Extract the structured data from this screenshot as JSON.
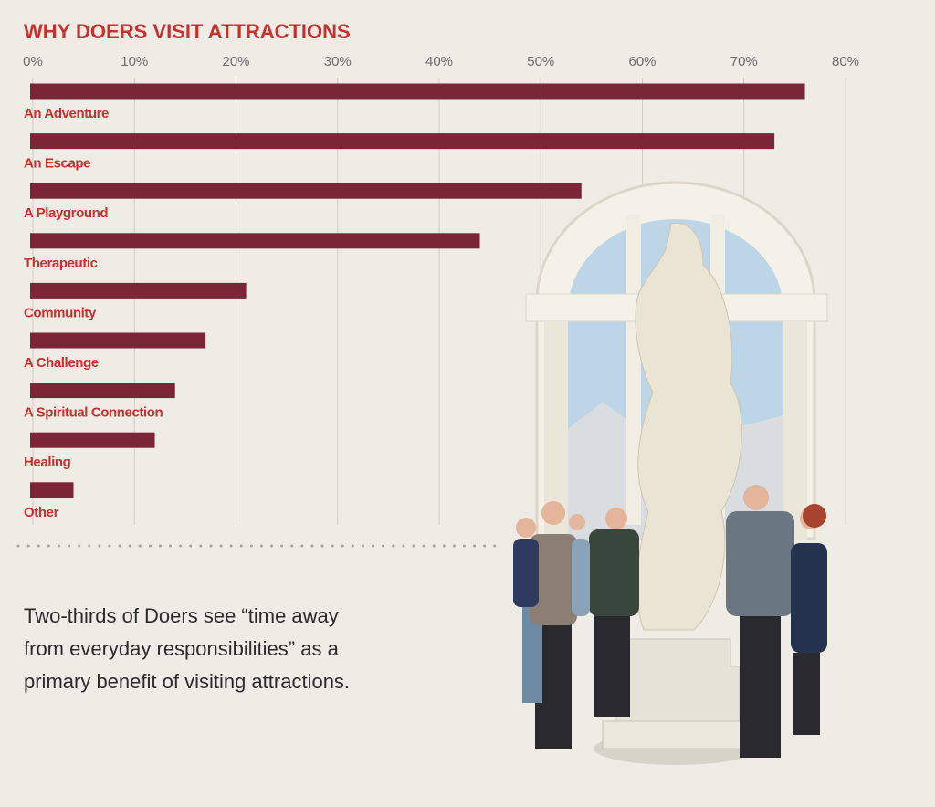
{
  "chart_data": {
    "type": "bar",
    "orientation": "horizontal",
    "title": "WHY DOERS VISIT ATTRACTIONS",
    "categories": [
      "An Adventure",
      "An Escape",
      "A Playground",
      "Therapeutic",
      "Community",
      "A Challenge",
      "A Spiritual Connection",
      "Healing",
      "Other"
    ],
    "values": [
      76,
      73,
      54,
      44,
      21,
      17,
      14,
      12,
      4
    ],
    "color": "#7a2637",
    "xlim": [
      0,
      80
    ],
    "xticks": [
      {
        "value": 0,
        "label": "0%"
      },
      {
        "value": 10,
        "label": "10%"
      },
      {
        "value": 20,
        "label": "20%"
      },
      {
        "value": 30,
        "label": "30%"
      },
      {
        "value": 40,
        "label": "40%"
      },
      {
        "value": 50,
        "label": "50%"
      },
      {
        "value": 60,
        "label": "60%"
      },
      {
        "value": 70,
        "label": "70%"
      },
      {
        "value": 80,
        "label": "80%"
      }
    ],
    "grid": true
  },
  "caption": {
    "lines": [
      "Two-thirds of Doers see “time away",
      "from everyday responsibilities” as a",
      "primary benefit of visiting attractions."
    ]
  }
}
